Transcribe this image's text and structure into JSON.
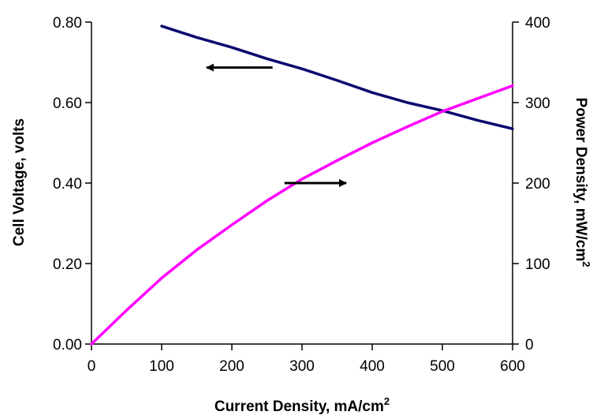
{
  "chart_data": {
    "type": "line",
    "title": "",
    "xlabel": "Current Density, mA/cm",
    "xlabel_sup": "2",
    "ylabel_left": "Cell Voltage, volts",
    "ylabel_right": "Power Density, mW/cm",
    "ylabel_right_sup": "2",
    "xlim": [
      0,
      600
    ],
    "ylim_left": [
      0,
      0.8
    ],
    "ylim_right": [
      0,
      400
    ],
    "x_ticks": [
      0,
      100,
      200,
      300,
      400,
      500,
      600
    ],
    "x_tick_labels": [
      "0",
      "100",
      "200",
      "300",
      "400",
      "500",
      "600"
    ],
    "y_left_ticks": [
      0,
      0.2,
      0.4,
      0.6,
      0.8
    ],
    "y_left_tick_labels": [
      "0.00",
      "0.20",
      "0.40",
      "0.60",
      "0.80"
    ],
    "y_right_ticks": [
      0,
      100,
      200,
      300,
      400
    ],
    "y_right_tick_labels": [
      "0",
      "100",
      "200",
      "300",
      "400"
    ],
    "grid": false,
    "series": [
      {
        "axis": "left",
        "color": "#0a0a6e",
        "x": [
          100,
          150,
          200,
          250,
          300,
          350,
          400,
          450,
          500,
          550,
          600
        ],
        "values": [
          0.79,
          0.762,
          0.737,
          0.709,
          0.684,
          0.655,
          0.625,
          0.6,
          0.58,
          0.556,
          0.535
        ]
      },
      {
        "axis": "right",
        "color": "#ff00ff",
        "x": [
          0,
          50,
          100,
          150,
          200,
          250,
          300,
          350,
          400,
          450,
          500,
          550,
          600
        ],
        "values": [
          0,
          42,
          82,
          117,
          148,
          178,
          205,
          228,
          250,
          270,
          289,
          305,
          321
        ]
      }
    ],
    "annotations": [
      {
        "type": "arrow",
        "direction": "left",
        "points_to": "left axis",
        "from": [
          258,
          0.687
        ],
        "to": [
          164,
          0.687
        ]
      },
      {
        "type": "arrow",
        "direction": "right",
        "points_to": "right axis",
        "from": [
          275,
          0.4
        ],
        "to": [
          363,
          0.4
        ]
      }
    ]
  }
}
